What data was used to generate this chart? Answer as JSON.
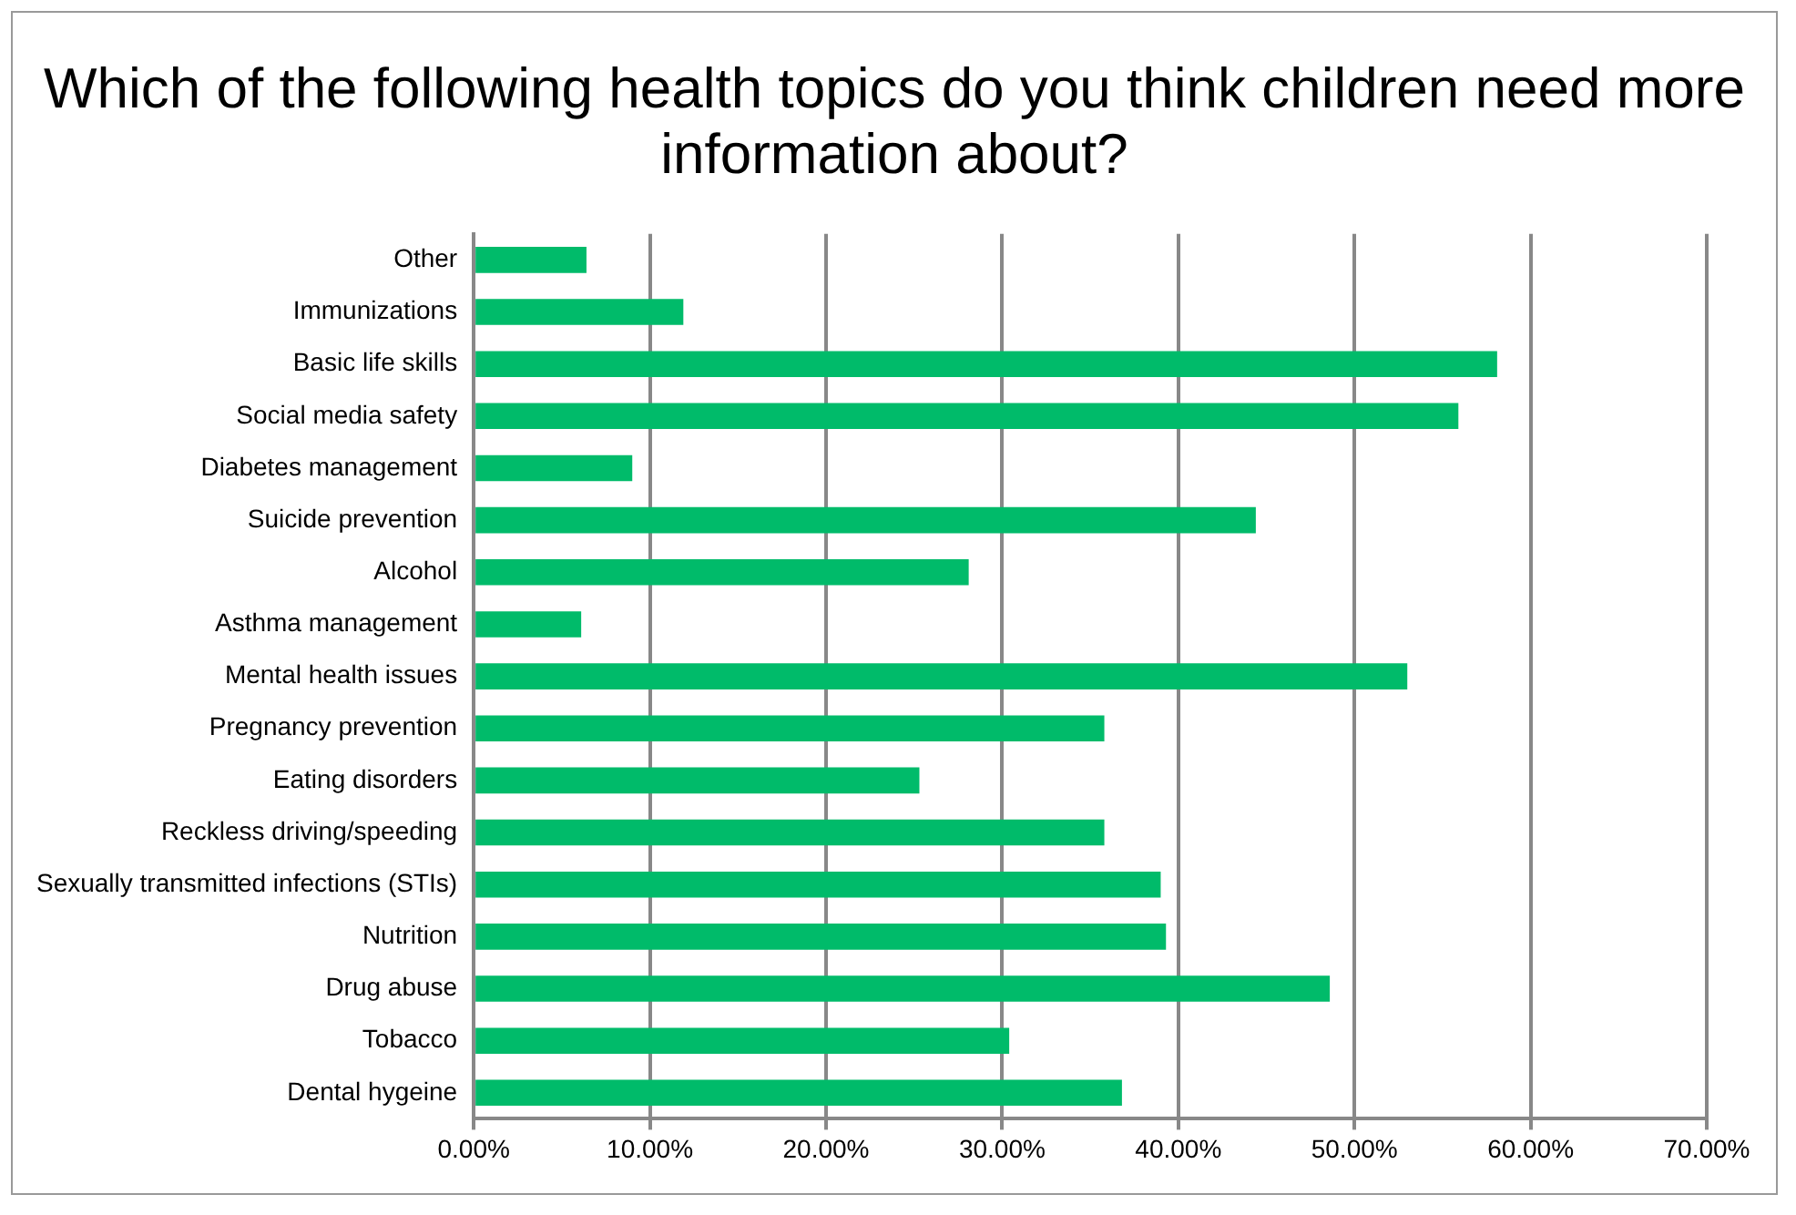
{
  "chart_data": {
    "type": "bar",
    "orientation": "horizontal",
    "title": "Which of the following health topics do you think children need more information about?",
    "categories": [
      "Other",
      "Immunizations",
      "Basic life skills",
      "Social media safety",
      "Diabetes management",
      "Suicide prevention",
      "Alcohol",
      "Asthma management",
      "Mental health issues",
      "Pregnancy prevention",
      "Eating disorders",
      "Reckless driving/speeding",
      "Sexually transmitted infections (STIs)",
      "Nutrition",
      "Drug abuse",
      "Tobacco",
      "Dental hygeine"
    ],
    "values": [
      6.4,
      11.9,
      58.1,
      55.9,
      9.0,
      44.4,
      28.1,
      6.1,
      53.0,
      35.8,
      25.3,
      35.8,
      39.0,
      39.3,
      48.6,
      30.4,
      36.8
    ],
    "color": "#00bb6a",
    "xlim": [
      0,
      70
    ],
    "xticks": [
      {
        "value": 0,
        "label": "0.00%"
      },
      {
        "value": 10,
        "label": "10.00%"
      },
      {
        "value": 20,
        "label": "20.00%"
      },
      {
        "value": 30,
        "label": "30.00%"
      },
      {
        "value": 40,
        "label": "40.00%"
      },
      {
        "value": 50,
        "label": "50.00%"
      },
      {
        "value": 60,
        "label": "60.00%"
      },
      {
        "value": 70,
        "label": "70.00%"
      }
    ],
    "grid": "x",
    "legend": false
  }
}
